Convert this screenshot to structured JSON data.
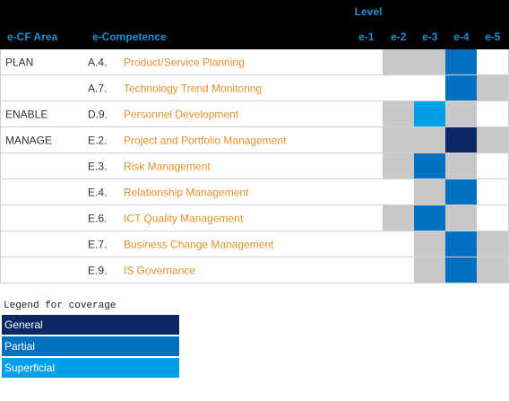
{
  "header": {
    "level": "Level",
    "columns": [
      "e-CF Area",
      "e-Competence"
    ],
    "levels": [
      "e-1",
      "e-2",
      "e-3",
      "e-4",
      "e-5"
    ]
  },
  "rows": [
    {
      "area": "PLAN",
      "code": "A.4.",
      "name": "Product/Service Planning",
      "cells": [
        "#ffffff",
        "#c8c8c8",
        "#c8c8c8",
        "#0070c0",
        "#ffffff"
      ]
    },
    {
      "code": "A.7.",
      "name": "Technology Trend Monitoring",
      "cells": [
        "#ffffff",
        "#ffffff",
        "#ffffff",
        "#0070c0",
        "#c8c8c8"
      ]
    },
    {
      "area": "ENABLE",
      "code": "D.9.",
      "name": "Personnel Development",
      "cells": [
        "#ffffff",
        "#c8c8c8",
        "#00a0e6",
        "#c8c8c8",
        "#ffffff"
      ]
    },
    {
      "area": "MANAGE",
      "code": "E.2.",
      "name": "Project and Portfolio Management",
      "cells": [
        "#ffffff",
        "#c8c8c8",
        "#c8c8c8",
        "#0a2864",
        "#c8c8c8"
      ]
    },
    {
      "code": "E.3.",
      "name": "Risk Management",
      "cells": [
        "#ffffff",
        "#c8c8c8",
        "#0070c0",
        "#c8c8c8",
        "#ffffff"
      ]
    },
    {
      "code": "E.4.",
      "name": "Relationship Management",
      "cells": [
        "#ffffff",
        "#ffffff",
        "#c8c8c8",
        "#0070c0",
        "#ffffff"
      ]
    },
    {
      "code": "E.6.",
      "name": "ICT Quality Management",
      "cells": [
        "#ffffff",
        "#c8c8c8",
        "#0070c0",
        "#c8c8c8",
        "#ffffff"
      ]
    },
    {
      "code": "E.7.",
      "name": "Business Change Management",
      "cells": [
        "#ffffff",
        "#ffffff",
        "#c8c8c8",
        "#0070c0",
        "#c8c8c8"
      ]
    },
    {
      "code": "E.9.",
      "name": "IS Governance",
      "cells": [
        "#ffffff",
        "#ffffff",
        "#c8c8c8",
        "#0070c0",
        "#c8c8c8"
      ]
    }
  ],
  "legend": {
    "title": "Legend for coverage",
    "items": [
      {
        "label": "General",
        "color": "#0a2864"
      },
      {
        "label": "Partial",
        "color": "#0070c0"
      },
      {
        "label": "Superficial",
        "color": "#00a0e6"
      }
    ]
  }
}
